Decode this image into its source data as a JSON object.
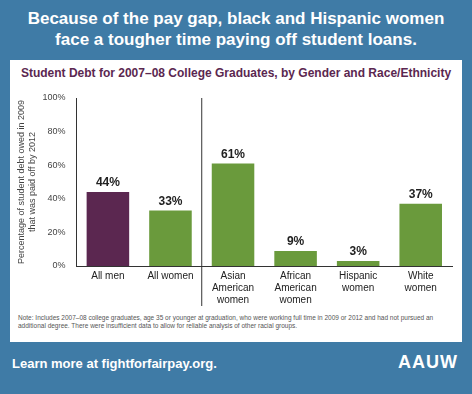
{
  "page": {
    "headline": "Because of the pay gap, black and Hispanic women face a tougher time paying off student loans.",
    "note": "Note: Includes 2007–08 college graduates, age 35 or younger at graduation, who were working full time in 2009 or 2012 and had not pursued an additional degree. There were insufficient data to allow for reliable analysis of other racial groups.",
    "link": "Learn more at fightforfairpay.org.",
    "logo": "AAUW"
  },
  "chart_data": {
    "type": "bar",
    "title": "Student Debt for 2007–08 College Graduates, by Gender and Race/Ethnicity",
    "y_label": "Percentage of student debt owed in 2009 that was paid off by 2012",
    "categories": [
      "All men",
      "All women",
      "Asian American women",
      "African American women",
      "Hispanic women",
      "White women"
    ],
    "values": [
      44,
      33,
      61,
      9,
      3,
      37
    ],
    "value_labels": [
      "44%",
      "33%",
      "61%",
      "9%",
      "3%",
      "37%"
    ],
    "colors": [
      "#5b2750",
      "#6a9a3c",
      "#6a9a3c",
      "#6a9a3c",
      "#6a9a3c",
      "#6a9a3c"
    ],
    "ylim": [
      0,
      100
    ],
    "yticks": [
      {
        "value": 0,
        "label": "0%"
      },
      {
        "value": 20,
        "label": "20%"
      },
      {
        "value": 40,
        "label": "40%"
      },
      {
        "value": 60,
        "label": "60%"
      },
      {
        "value": 80,
        "label": "80%"
      },
      {
        "value": 100,
        "label": "100%"
      }
    ],
    "data_labels": true,
    "grid": false
  }
}
